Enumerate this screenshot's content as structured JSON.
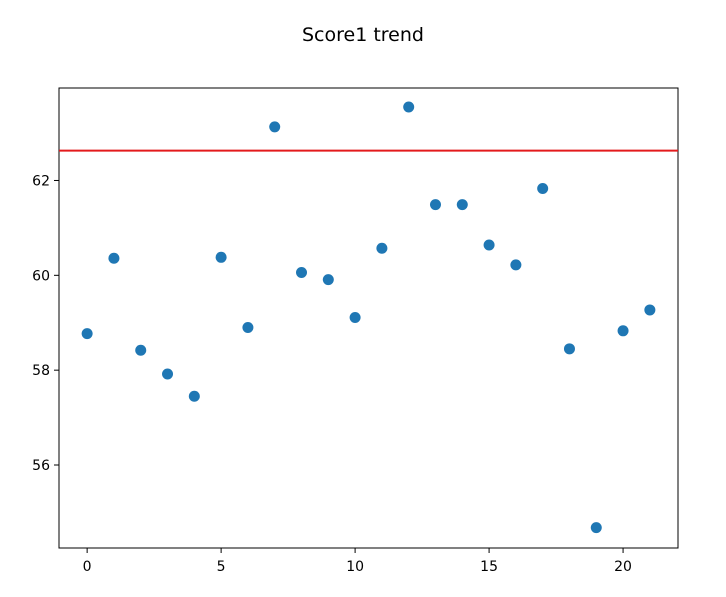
{
  "chart_data": {
    "type": "scatter",
    "title": "Score1 trend",
    "xlabel": "",
    "ylabel": "",
    "xlim": [
      -1.05,
      22.05
    ],
    "ylim": [
      54.25,
      63.95
    ],
    "xticks": [
      0,
      5,
      10,
      15,
      20
    ],
    "yticks": [
      56,
      58,
      60,
      62
    ],
    "grid": false,
    "series": [
      {
        "color": "#1f77b4",
        "x": [
          0,
          1,
          2,
          3,
          4,
          5,
          6,
          7,
          8,
          9,
          10,
          11,
          12,
          13,
          14,
          15,
          16,
          17,
          18,
          19,
          20,
          21
        ],
        "y": [
          58.77,
          60.36,
          58.42,
          57.92,
          57.45,
          60.38,
          58.9,
          63.13,
          60.06,
          59.91,
          59.11,
          60.57,
          63.55,
          61.49,
          61.49,
          60.64,
          60.22,
          61.83,
          58.45,
          54.68,
          58.83,
          59.27
        ]
      }
    ],
    "hline": {
      "y": 62.63,
      "color": "#e31a1c"
    }
  }
}
